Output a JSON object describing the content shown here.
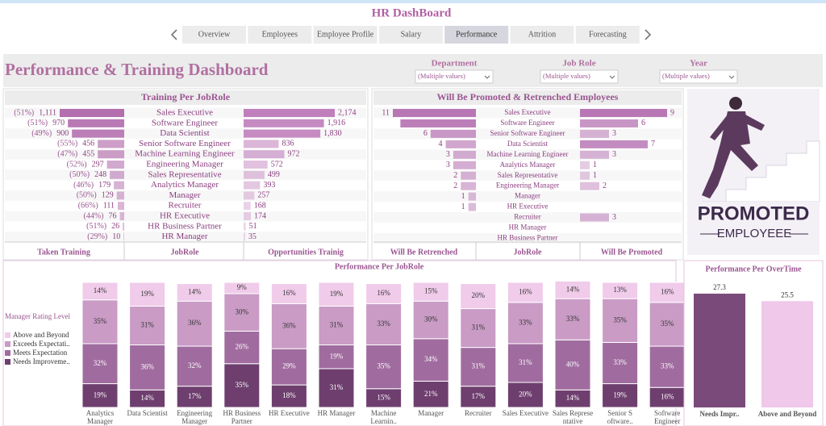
{
  "header": {
    "title": "HR DashBoard"
  },
  "nav": {
    "tabs": [
      "Overview",
      "Employees",
      "Employee Profile",
      "Salary",
      "Performance",
      "Attrition",
      "Forecasting"
    ],
    "active": 4
  },
  "dashboard_title": "Performance & Training Dashboard",
  "filters": [
    {
      "label": "Department",
      "value": "(Multiple values)"
    },
    {
      "label": "Job Role",
      "value": "(Multiple values)"
    },
    {
      "label": "Year",
      "value": "(Multiple values)"
    }
  ],
  "image": {
    "texts": [
      "PROMOTED",
      "EMPLOYEEE"
    ]
  },
  "chart_data": [
    {
      "type": "diverging_bar",
      "title": "Training Per JobRole",
      "category_header": "JobRole",
      "categories": [
        "Sales Executive",
        "Software Engineer",
        "Data Scientist",
        "Senior Software Engineer",
        "Machine Learning Engineer",
        "Engineering Manager",
        "Sales Representative",
        "Analytics Manager",
        "Manager",
        "Recruiter",
        "HR Executive",
        "HR Business Partner",
        "HR Manager"
      ],
      "series": [
        {
          "name": "Taken Training",
          "color": "#b36fae",
          "values": [
            1111,
            970,
            900,
            456,
            455,
            297,
            248,
            179,
            129,
            111,
            76,
            26,
            10
          ],
          "value_labels": [
            "1,111",
            "970",
            "900",
            "456",
            "455",
            "297",
            "248",
            "179",
            "129",
            "111",
            "76",
            "26",
            "10"
          ],
          "shares": [
            51,
            51,
            49,
            55,
            47,
            52,
            50,
            46,
            50,
            66,
            44,
            51,
            29
          ],
          "share_labels": [
            "(51%)",
            "(51%)",
            "(49%)",
            "(55%)",
            "(47%)",
            "(52%)",
            "(50%)",
            "(46%)",
            "(50%)",
            "(66%)",
            "(44%)",
            "(51%)",
            "(29%)"
          ]
        },
        {
          "name": "Opportunities Trainig",
          "color": "#c07fbc",
          "values": [
            2174,
            1916,
            1830,
            836,
            972,
            572,
            499,
            393,
            257,
            168,
            174,
            51,
            35
          ],
          "value_labels": [
            "2,174",
            "1,916",
            "1,830",
            "836",
            "972",
            "572",
            "499",
            "393",
            "257",
            "168",
            "174",
            "51",
            "35"
          ]
        }
      ]
    },
    {
      "type": "diverging_bar",
      "title": "Will Be Promoted & Retrenched Employees",
      "category_header": "JobRole",
      "categories": [
        "Sales Executive",
        "Software Engineer",
        "Senior Software Engineer",
        "Data Scientist",
        "Machine Learning Engineer",
        "Analytics Manager",
        "Sales Representative",
        "Engineering Manager",
        "Manager",
        "HR Executive",
        "Recruiter",
        "HR Manager",
        "HR Business Partner"
      ],
      "series": [
        {
          "name": "Will Be Retrenched",
          "color": "#b877b4",
          "values": [
            11,
            10,
            6,
            4,
            3,
            3,
            2,
            2,
            1,
            1,
            null,
            null,
            null
          ],
          "value_labels": [
            "11",
            null,
            "6",
            "4",
            "3",
            "3",
            "2",
            "2",
            "1",
            "1",
            null,
            null,
            null
          ]
        },
        {
          "name": "Will Be Promoted",
          "color": "#b877b4",
          "values": [
            9,
            6,
            3,
            7,
            3,
            1,
            1,
            2,
            null,
            null,
            3,
            null,
            null
          ]
        }
      ]
    },
    {
      "type": "stacked_bar_100",
      "title": "Performance Per JobRole",
      "legend_title": "Manager Rating Level",
      "categories": [
        "Analytics Manager",
        "Data Scientist",
        "Engineering Manager",
        "HR Business Partner",
        "HR Executive",
        "HR Manager",
        "Machine Learnin..",
        "Manager",
        "Recruiter",
        "Sales Executive",
        "Sales Represe ntative",
        "Senior S oftware..",
        "Software Engineer"
      ],
      "ylim": [
        0,
        100
      ],
      "series": [
        {
          "name": "Above and Beyond",
          "color": "#f0cbea",
          "values": [
            14,
            19,
            14,
            9,
            16,
            19,
            16,
            15,
            20,
            16,
            14,
            13,
            16
          ],
          "value_labels": [
            "14%",
            "19%",
            "14%",
            "9%",
            "16%",
            "19%",
            "16%",
            "15%",
            "20%",
            "16%",
            "14%",
            "13%",
            "16%"
          ]
        },
        {
          "name": "Exceeds Expectati..",
          "color": "#c99bc5",
          "values": [
            35,
            31,
            36,
            30,
            36,
            31,
            33,
            30,
            31,
            33,
            33,
            35,
            35
          ],
          "value_labels": [
            "35%",
            "31%",
            "36%",
            "30%",
            "36%",
            "31%",
            "33%",
            "30%",
            "31%",
            "33%",
            "33%",
            "35%",
            "35%"
          ]
        },
        {
          "name": "Meets Expectation",
          "color": "#a06c9f",
          "values": [
            32,
            36,
            32,
            26,
            29,
            19,
            35,
            34,
            31,
            31,
            40,
            33,
            33
          ],
          "value_labels": [
            "32%",
            "36%",
            "32%",
            "26%",
            "29%",
            "19%",
            "35%",
            "34%",
            "31%",
            "31%",
            "40%",
            "33%",
            "33%"
          ]
        },
        {
          "name": "Needs Improveme..",
          "color": "#6e3f6e",
          "values": [
            19,
            14,
            17,
            35,
            18,
            31,
            15,
            21,
            17,
            20,
            14,
            19,
            16
          ],
          "value_labels": [
            "19%",
            "14%",
            "17%",
            "35%",
            "18%",
            "31%",
            "15%",
            "21%",
            "17%",
            "20%",
            "14%",
            "19%",
            "16%"
          ]
        }
      ]
    },
    {
      "type": "bar",
      "title": "Performance Per  OverTime",
      "categories": [
        "Needs Impr..",
        "Above and Beyond"
      ],
      "values": [
        27.3,
        25.5
      ],
      "colors": [
        "#7a4b7a",
        "#efc8ea"
      ],
      "ylim": [
        0,
        30
      ]
    }
  ]
}
